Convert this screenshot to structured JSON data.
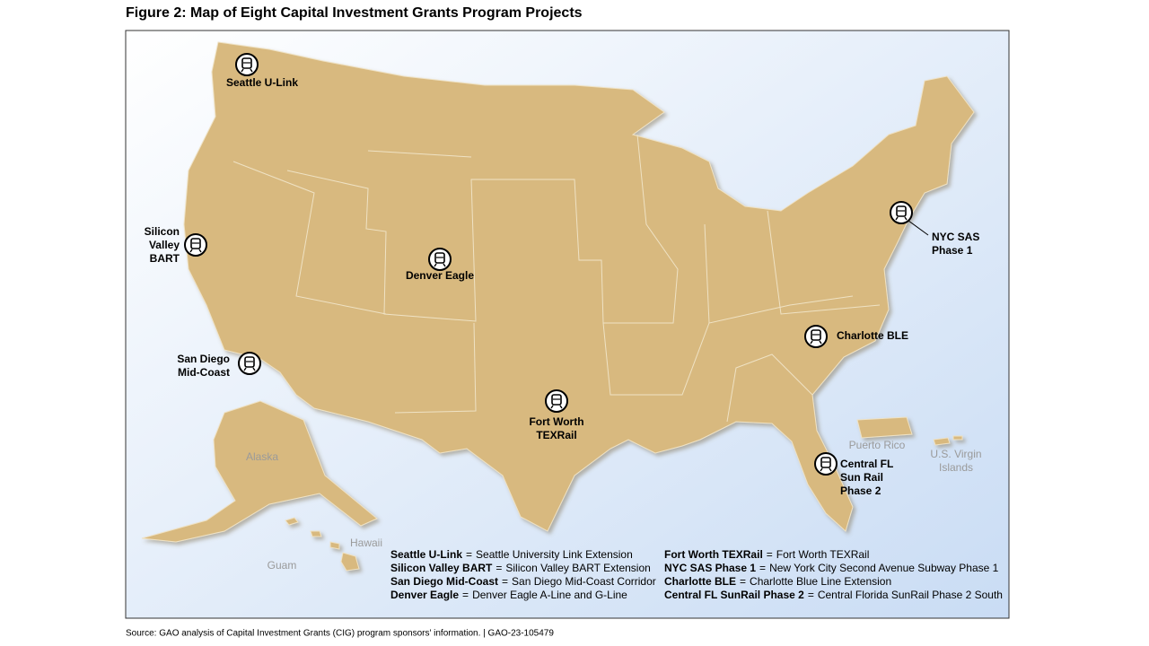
{
  "title": "Figure 2: Map of Eight Capital Investment Grants Program Projects",
  "projects": [
    {
      "label": [
        "Seattle U-Link"
      ]
    },
    {
      "label": [
        "Silicon",
        "Valley",
        "BART"
      ]
    },
    {
      "label": [
        "Denver Eagle"
      ]
    },
    {
      "label": [
        "San Diego",
        "Mid-Coast"
      ]
    },
    {
      "label": [
        "Fort Worth",
        "TEXRail"
      ]
    },
    {
      "label": [
        "NYC SAS",
        "Phase 1"
      ]
    },
    {
      "label": [
        "Charlotte BLE"
      ]
    },
    {
      "label": [
        "Central FL",
        "Sun Rail",
        "Phase 2"
      ]
    }
  ],
  "territories": [
    {
      "label": [
        "Alaska"
      ]
    },
    {
      "label": [
        "Hawaii"
      ]
    },
    {
      "label": [
        "Guam"
      ]
    },
    {
      "label": [
        "Puerto Rico"
      ]
    },
    {
      "label": [
        "U.S. Virgin",
        "Islands"
      ]
    }
  ],
  "key": {
    "separator": "=",
    "items": [
      {
        "term": "Seattle U-Link",
        "definition": "Seattle University Link Extension"
      },
      {
        "term": "Silicon Valley BART",
        "definition": "Silicon Valley BART Extension"
      },
      {
        "term": "San Diego Mid-Coast",
        "definition": "San Diego Mid-Coast Corridor"
      },
      {
        "term": "Denver Eagle",
        "definition": "Denver Eagle A-Line and G-Line"
      },
      {
        "term": "Fort Worth TEXRail",
        "definition": "Fort Worth TEXRail"
      },
      {
        "term": "NYC SAS Phase 1",
        "definition": "New York City Second Avenue Subway Phase 1"
      },
      {
        "term": "Charlotte BLE",
        "definition": "Charlotte Blue Line Extension"
      },
      {
        "term": "Central FL SunRail Phase 2",
        "definition": "Central Florida SunRail Phase 2 South"
      }
    ]
  },
  "source": "Source: GAO analysis of Capital Investment Grants (CIG) program sponsors' information.  |  GAO-23-105479"
}
